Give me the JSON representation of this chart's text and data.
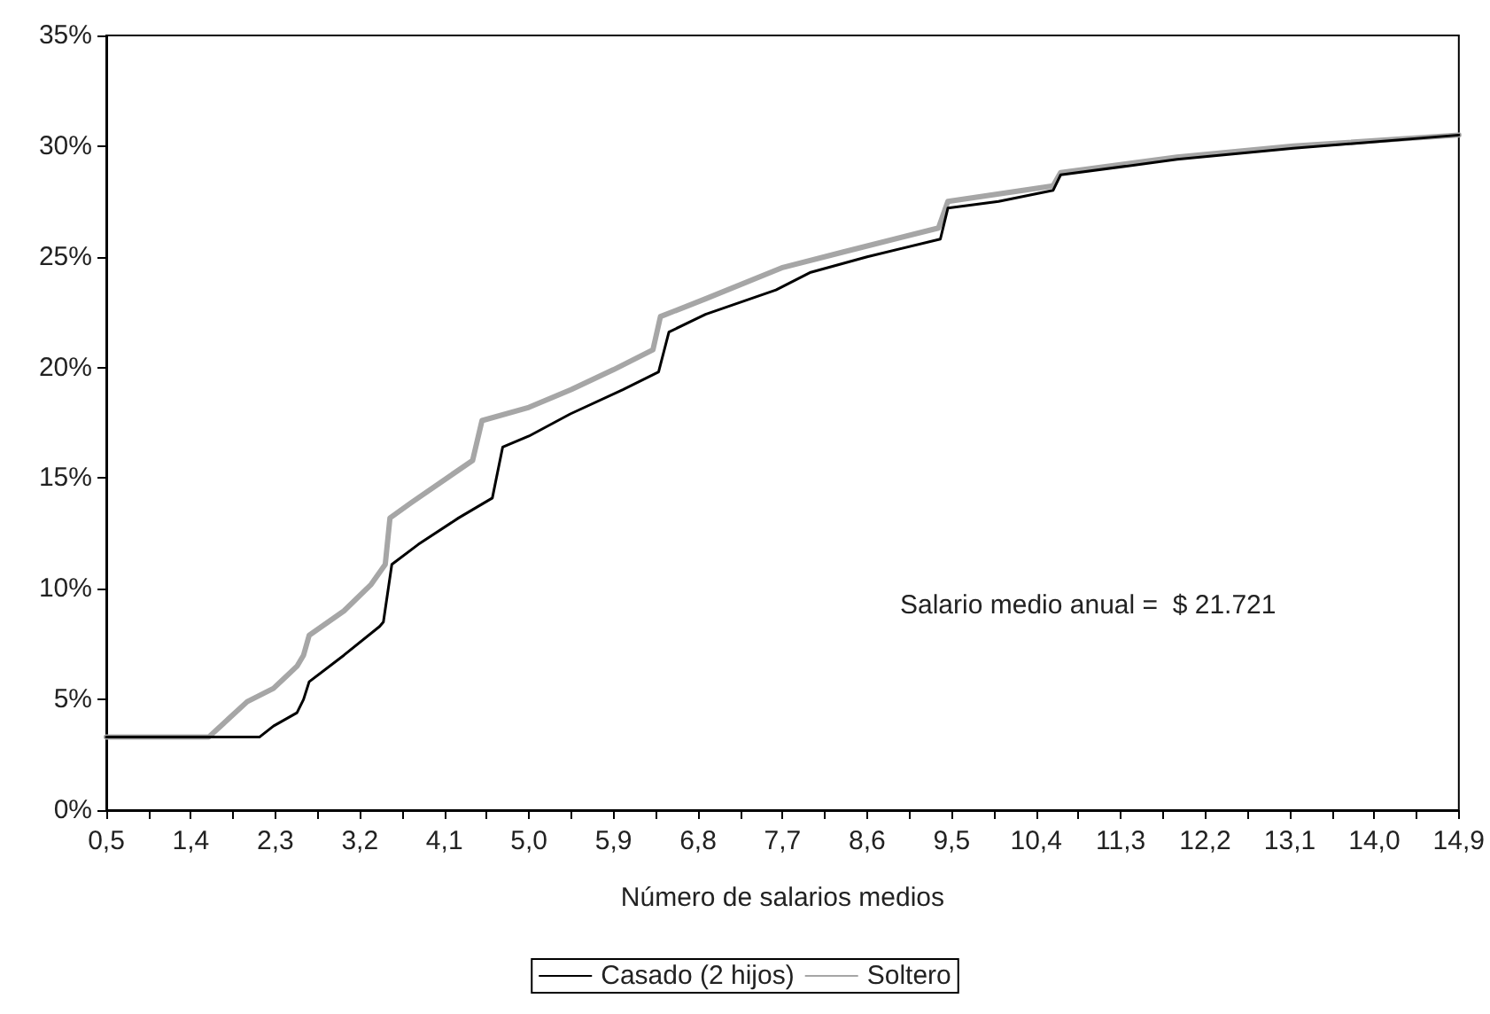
{
  "chart_data": {
    "type": "line",
    "xlabel": "Número de salarios medios",
    "xlim": [
      0.5,
      14.9
    ],
    "xticks": [
      {
        "value": 0.5,
        "label": "0,5"
      },
      {
        "value": 0.95,
        "label": null
      },
      {
        "value": 1.4,
        "label": "1,4"
      },
      {
        "value": 1.85,
        "label": null
      },
      {
        "value": 2.3,
        "label": "2,3"
      },
      {
        "value": 2.75,
        "label": null
      },
      {
        "value": 3.2,
        "label": "3,2"
      },
      {
        "value": 3.65,
        "label": null
      },
      {
        "value": 4.1,
        "label": "4,1"
      },
      {
        "value": 4.55,
        "label": null
      },
      {
        "value": 5.0,
        "label": "5,0"
      },
      {
        "value": 5.45,
        "label": null
      },
      {
        "value": 5.9,
        "label": "5,9"
      },
      {
        "value": 6.35,
        "label": null
      },
      {
        "value": 6.8,
        "label": "6,8"
      },
      {
        "value": 7.25,
        "label": null
      },
      {
        "value": 7.7,
        "label": "7,7"
      },
      {
        "value": 8.15,
        "label": null
      },
      {
        "value": 8.6,
        "label": "8,6"
      },
      {
        "value": 9.05,
        "label": null
      },
      {
        "value": 9.5,
        "label": "9,5"
      },
      {
        "value": 9.95,
        "label": null
      },
      {
        "value": 10.4,
        "label": "10,4"
      },
      {
        "value": 10.85,
        "label": null
      },
      {
        "value": 11.3,
        "label": "11,3"
      },
      {
        "value": 11.75,
        "label": null
      },
      {
        "value": 12.2,
        "label": "12,2"
      },
      {
        "value": 12.65,
        "label": null
      },
      {
        "value": 13.1,
        "label": "13,1"
      },
      {
        "value": 13.55,
        "label": null
      },
      {
        "value": 14.0,
        "label": "14,0"
      },
      {
        "value": 14.45,
        "label": null
      },
      {
        "value": 14.9,
        "label": "14,9"
      }
    ],
    "ylim": [
      0,
      35
    ],
    "yticks": [
      {
        "value": 0,
        "label": "0%"
      },
      {
        "value": 5,
        "label": "5%"
      },
      {
        "value": 10,
        "label": "10%"
      },
      {
        "value": 15,
        "label": "15%"
      },
      {
        "value": 20,
        "label": "20%"
      },
      {
        "value": 25,
        "label": "25%"
      },
      {
        "value": 30,
        "label": "30%"
      },
      {
        "value": 35,
        "label": "35%"
      }
    ],
    "annotations": [
      "Salario medio anual =  $ 21.721"
    ],
    "grid": false,
    "legend": "bottom",
    "marker": "none",
    "line_style": "solid",
    "series": [
      {
        "name": "Casado (2 hijos)",
        "color": "#000000",
        "x": [
          0.5,
          2.13,
          2.28,
          2.53,
          2.6,
          2.66,
          3.03,
          3.41,
          3.45,
          3.54,
          3.82,
          4.25,
          4.61,
          4.72,
          5.0,
          5.44,
          6.0,
          6.38,
          6.49,
          6.88,
          7.63,
          8.0,
          8.6,
          9.38,
          9.46,
          10.0,
          10.58,
          10.66,
          11.9,
          13.14,
          14.9
        ],
        "values": [
          3.3,
          3.3,
          3.8,
          4.4,
          5.0,
          5.8,
          7.0,
          8.3,
          8.5,
          11.1,
          12.0,
          13.2,
          14.1,
          16.4,
          16.9,
          17.9,
          19.0,
          19.8,
          21.6,
          22.4,
          23.5,
          24.3,
          25.0,
          25.8,
          27.2,
          27.5,
          28.0,
          28.7,
          29.4,
          29.9,
          30.5
        ]
      },
      {
        "name": "Soltero",
        "color": "#a6a6a6",
        "x": [
          0.5,
          1.59,
          2.0,
          2.28,
          2.53,
          2.6,
          2.66,
          3.03,
          3.32,
          3.47,
          3.52,
          3.75,
          4.16,
          4.4,
          4.5,
          5.0,
          5.45,
          5.9,
          6.32,
          6.4,
          6.88,
          7.69,
          8.33,
          9.36,
          9.46,
          10.58,
          10.66,
          11.9,
          13.14,
          14.9
        ],
        "values": [
          3.3,
          3.3,
          4.9,
          5.5,
          6.5,
          7.0,
          7.9,
          9.0,
          10.2,
          11.1,
          13.2,
          13.9,
          15.1,
          15.8,
          17.6,
          18.2,
          19.0,
          19.9,
          20.8,
          22.3,
          23.1,
          24.5,
          25.2,
          26.3,
          27.5,
          28.2,
          28.8,
          29.5,
          30.0,
          30.5
        ]
      }
    ]
  }
}
